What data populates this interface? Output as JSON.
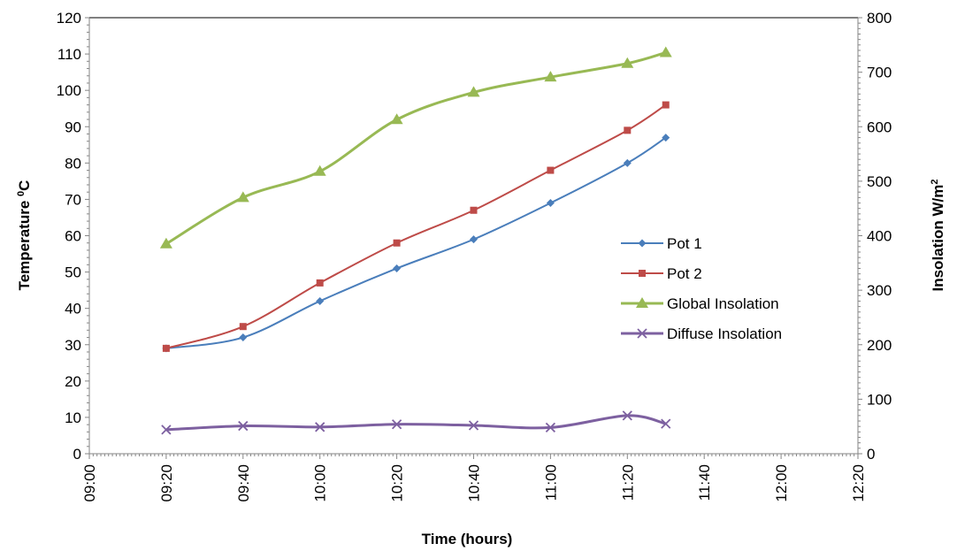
{
  "chart_data": {
    "type": "line",
    "xlabel": "Time (hours)",
    "ylabel_left": {
      "main": "Temperature ",
      "sup": "0",
      "tail": "C"
    },
    "ylabel_right": {
      "main": "Insolation W/m",
      "sup": "2"
    },
    "x_ticks": [
      "09:00",
      "09:20",
      "09:40",
      "10:00",
      "10:20",
      "10:40",
      "11:00",
      "11:20",
      "11:40",
      "12:00",
      "12:20"
    ],
    "x_range": [
      "09:00",
      "12:20"
    ],
    "y_left_range": [
      0,
      120
    ],
    "y_left_step": 10,
    "y_right_range": [
      0,
      800
    ],
    "y_right_step": 100,
    "legend_position": "center-right",
    "series": [
      {
        "name": "Pot 1",
        "axis": "left",
        "marker": "diamond",
        "color": "#4a7ebb",
        "x": [
          "09:20",
          "09:40",
          "10:00",
          "10:20",
          "10:40",
          "11:00",
          "11:20",
          "11:30"
        ],
        "y": [
          29,
          32,
          42,
          51,
          59,
          69,
          80,
          87
        ]
      },
      {
        "name": "Pot 2",
        "axis": "left",
        "marker": "square",
        "color": "#be4b48",
        "x": [
          "09:20",
          "09:40",
          "10:00",
          "10:20",
          "10:40",
          "11:00",
          "11:20",
          "11:30"
        ],
        "y": [
          29,
          35,
          47,
          58,
          67,
          78,
          89,
          96
        ]
      },
      {
        "name": "Global Insolation",
        "axis": "right",
        "marker": "triangle",
        "color": "#98b954",
        "x": [
          "09:20",
          "09:40",
          "10:00",
          "10:20",
          "10:40",
          "11:00",
          "11:20",
          "11:30"
        ],
        "y": [
          385,
          470,
          518,
          613,
          663,
          691,
          716,
          736
        ]
      },
      {
        "name": "Diffuse Insolation",
        "axis": "right",
        "marker": "x",
        "color": "#7d60a0",
        "x": [
          "09:20",
          "09:40",
          "10:00",
          "10:20",
          "10:40",
          "11:00",
          "11:20",
          "11:30"
        ],
        "y": [
          44,
          51,
          49,
          54,
          52,
          48,
          70,
          55
        ]
      }
    ]
  }
}
